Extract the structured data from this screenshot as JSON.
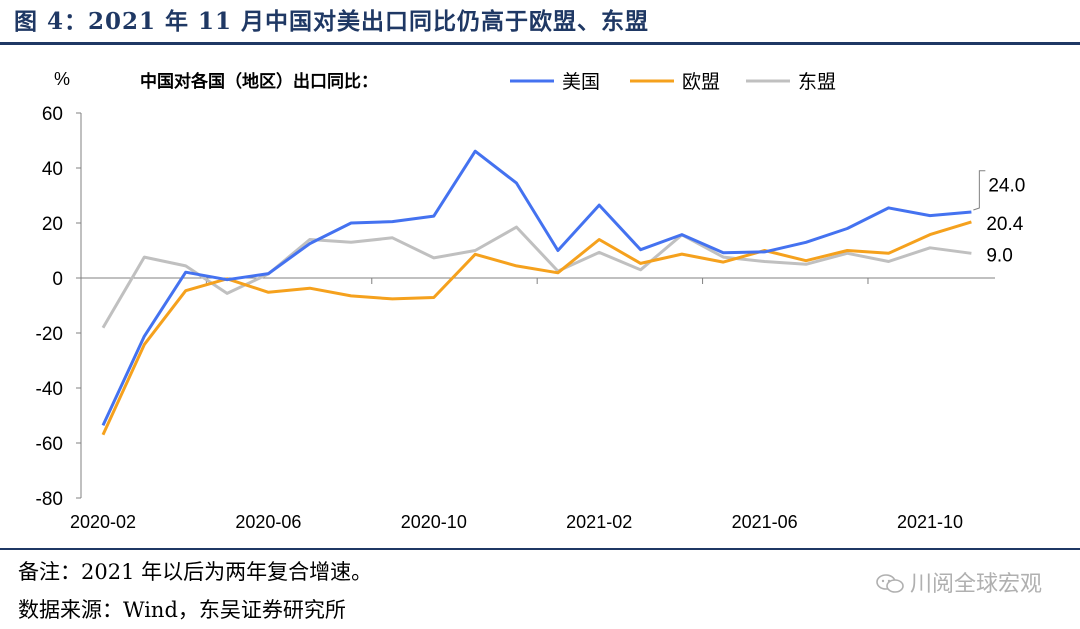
{
  "figure_title": "图 4：2021 年 11 月中国对美出口同比仍高于欧盟、东盟",
  "note": "备注：2021 年以后为两年复合增速。",
  "source": "数据来源：Wind，东吴证券研究所",
  "watermark": "川阅全球宏观",
  "chart_data": {
    "type": "line",
    "title": "中国对各国（地区）出口同比：",
    "ylabel": "%",
    "xlabel": "",
    "ylim": [
      -80,
      60
    ],
    "yticks": [
      60,
      40,
      20,
      0,
      -20,
      -40,
      -60,
      -80
    ],
    "ytick_labels": [
      "60",
      "40",
      "20",
      "0",
      "-20",
      "-40",
      "-60",
      "-80"
    ],
    "x": [
      "2020-02",
      "2020-03",
      "2020-04",
      "2020-05",
      "2020-06",
      "2020-07",
      "2020-08",
      "2020-09",
      "2020-10",
      "2020-11",
      "2020-12",
      "2021-01",
      "2021-02",
      "2021-03",
      "2021-04",
      "2021-05",
      "2021-06",
      "2021-07",
      "2021-08",
      "2021-09",
      "2021-10",
      "2021-11"
    ],
    "xtick_labels": [
      "2020-02",
      "2020-06",
      "2020-10",
      "2021-02",
      "2021-06",
      "2021-10"
    ],
    "grid": false,
    "legend_position": "top",
    "series": [
      {
        "name": "美国",
        "color": "#4472f0",
        "values": [
          -53.6,
          -21.2,
          2.1,
          -0.6,
          1.6,
          12.5,
          20.0,
          20.5,
          22.5,
          46.1,
          34.5,
          10.0,
          26.5,
          10.3,
          15.8,
          9.2,
          9.5,
          13.0,
          18.0,
          25.5,
          22.7,
          24.0
        ]
      },
      {
        "name": "欧盟",
        "color": "#f5a11d",
        "values": [
          -57.0,
          -24.2,
          -4.6,
          -0.3,
          -5.2,
          -3.7,
          -6.5,
          -7.6,
          -7.1,
          8.6,
          4.4,
          1.9,
          14.0,
          5.3,
          8.7,
          5.8,
          10.0,
          6.3,
          10.0,
          9.0,
          15.8,
          20.4
        ]
      },
      {
        "name": "东盟",
        "color": "#c0c0c0",
        "values": [
          -18.1,
          7.6,
          4.4,
          -5.6,
          1.5,
          14.0,
          13.0,
          14.6,
          7.3,
          10.0,
          18.5,
          2.5,
          9.3,
          3.0,
          15.7,
          7.6,
          6.0,
          5.0,
          9.0,
          6.0,
          11.0,
          9.0
        ]
      }
    ],
    "end_labels": [
      "24.0",
      "20.4",
      "9.0"
    ]
  }
}
